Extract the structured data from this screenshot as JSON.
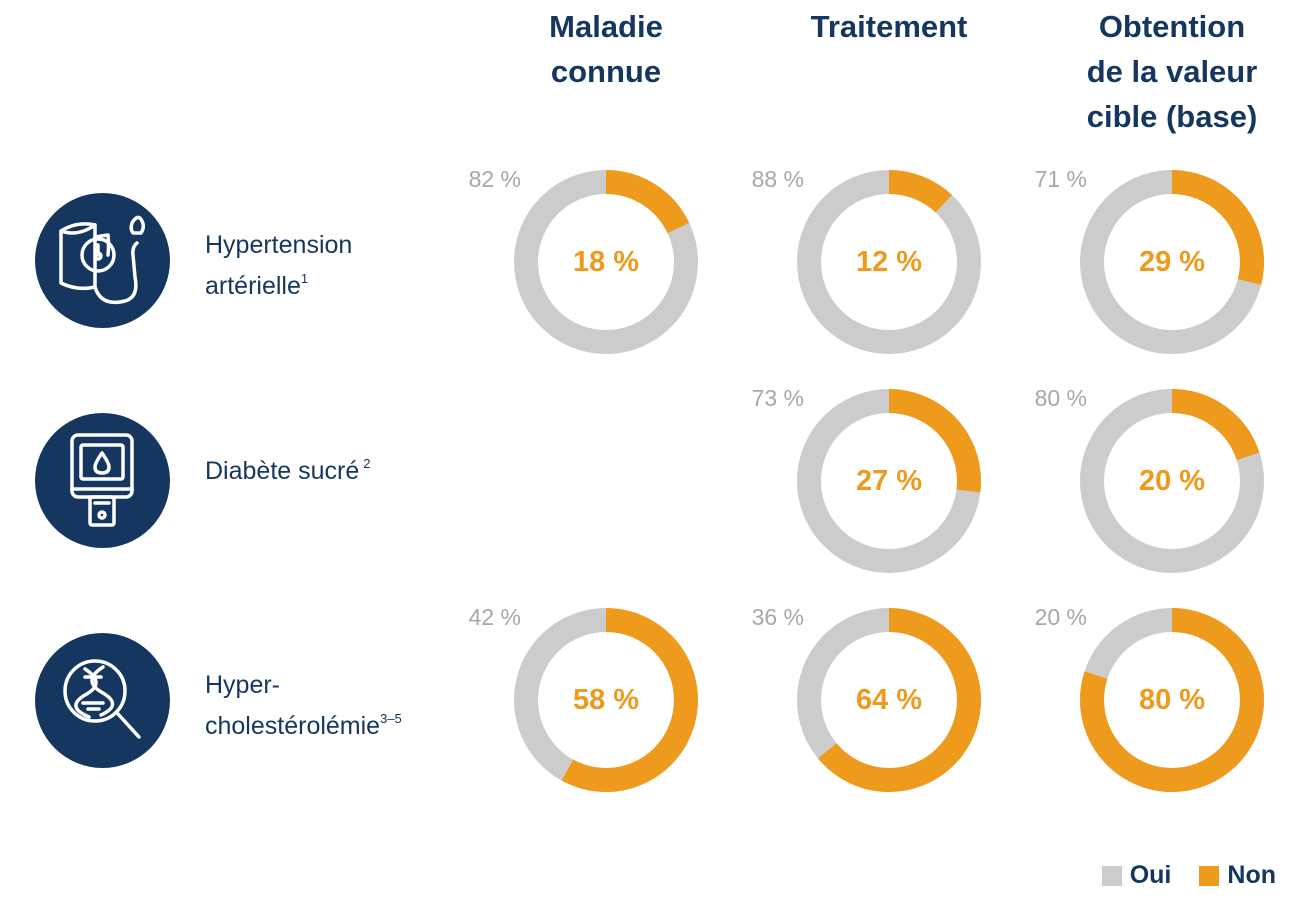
{
  "colors": {
    "oui": "#cccccc",
    "non": "#ee9a1d",
    "navy": "#14365f",
    "label_grey": "#a7a7a7"
  },
  "columns": [
    {
      "lines": [
        "Maladie",
        "connue"
      ]
    },
    {
      "lines": [
        "Traitement"
      ]
    },
    {
      "lines": [
        "Obtention",
        "de la valeur",
        "cible (base)"
      ]
    }
  ],
  "rows": [
    {
      "icon": "blood-pressure-monitor-icon",
      "lines": [
        "Hypertension",
        "artérielle"
      ],
      "sup": "1"
    },
    {
      "icon": "glucose-meter-icon",
      "lines": [
        "Diabète sucré"
      ],
      "sup": "2"
    },
    {
      "icon": "dna-magnifier-icon",
      "lines": [
        "Hyper-",
        "cholestérolémie"
      ],
      "sup": "3–5"
    }
  ],
  "chart_data": {
    "type": "pie",
    "variant": "donut-grid",
    "series": [
      {
        "name": "Oui"
      },
      {
        "name": "Non"
      }
    ],
    "cells": [
      {
        "row": 0,
        "col": 0,
        "oui": 82,
        "non": 18,
        "oui_label": "82 %",
        "non_label": "18 %"
      },
      {
        "row": 0,
        "col": 1,
        "oui": 88,
        "non": 12,
        "oui_label": "88 %",
        "non_label": "12 %"
      },
      {
        "row": 0,
        "col": 2,
        "oui": 71,
        "non": 29,
        "oui_label": "71 %",
        "non_label": "29 %"
      },
      {
        "row": 1,
        "col": 1,
        "oui": 73,
        "non": 27,
        "oui_label": "73 %",
        "non_label": "27 %"
      },
      {
        "row": 1,
        "col": 2,
        "oui": 80,
        "non": 20,
        "oui_label": "80 %",
        "non_label": "20 %"
      },
      {
        "row": 2,
        "col": 0,
        "oui": 42,
        "non": 58,
        "oui_label": "42 %",
        "non_label": "58 %"
      },
      {
        "row": 2,
        "col": 1,
        "oui": 36,
        "non": 64,
        "oui_label": "36 %",
        "non_label": "64 %"
      },
      {
        "row": 2,
        "col": 2,
        "oui": 20,
        "non": 80,
        "oui_label": "20 %",
        "non_label": "80 %"
      }
    ],
    "legend": {
      "position": "bottom-right",
      "items": [
        "Oui",
        "Non"
      ]
    }
  }
}
